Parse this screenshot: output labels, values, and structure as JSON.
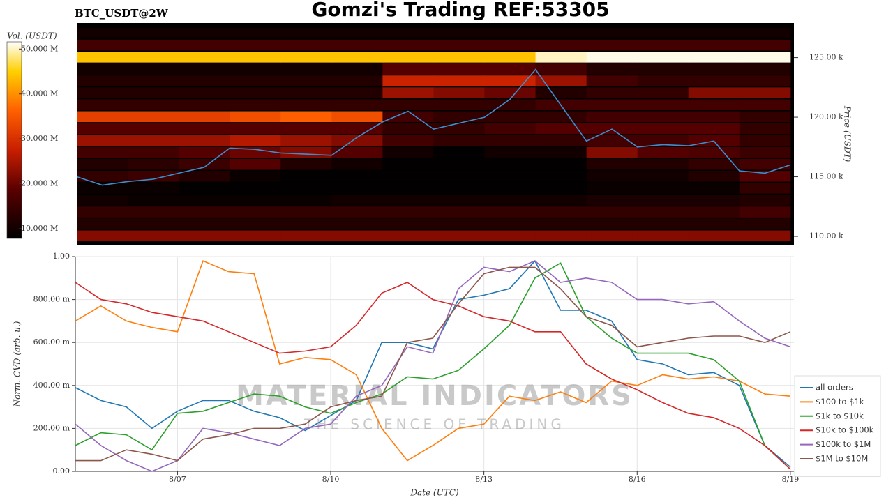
{
  "chart_data": [
    {
      "type": "heatmap",
      "title": "Gomzi's Trading REF:53305",
      "subtitle": "BTC_USDT@2W",
      "ylabel": "Price (USDT)",
      "colorbar_label": "Vol. (USDT)",
      "xlim": [
        5,
        19.07
      ],
      "ylim": [
        109300,
        127900
      ],
      "yticks": [
        {
          "value": 110000,
          "label": "110.00 k"
        },
        {
          "value": 115000,
          "label": "115.00 k"
        },
        {
          "value": 120000,
          "label": "120.00 k"
        },
        {
          "value": 125000,
          "label": "125.00 k"
        }
      ],
      "clim": [
        7800000,
        51600000
      ],
      "colorbar_ticks": [
        {
          "value": 10000000,
          "label": "10.000 M"
        },
        {
          "value": 20000000,
          "label": "20.000 M"
        },
        {
          "value": 30000000,
          "label": "30.000 M"
        },
        {
          "value": 40000000,
          "label": "40.000 M"
        },
        {
          "value": 50000000,
          "label": "50.000 M"
        }
      ],
      "colorscale": [
        [
          0,
          "#000000"
        ],
        [
          0.25,
          "#5a0000"
        ],
        [
          0.45,
          "#c81e00"
        ],
        [
          0.65,
          "#ff6000"
        ],
        [
          0.85,
          "#ffd000"
        ],
        [
          1,
          "#ffffff"
        ]
      ],
      "x_bins": [
        5,
        6,
        7,
        8,
        9,
        10,
        11,
        12,
        13,
        14,
        15,
        16,
        17,
        18,
        19
      ],
      "y_bins": [
        109500,
        110500,
        111500,
        112500,
        113500,
        114500,
        115500,
        116500,
        117500,
        118500,
        119500,
        120500,
        121500,
        122500,
        123500,
        124500,
        125500,
        126500,
        127500
      ],
      "z": [
        [
          22000000,
          22000000,
          22000000,
          22000000,
          22000000,
          22000000,
          22000000,
          22000000,
          22000000,
          22000000,
          22000000,
          22000000,
          22000000,
          22000000
        ],
        [
          12000000,
          12000000,
          12000000,
          12000000,
          12000000,
          12000000,
          12000000,
          12000000,
          12000000,
          12000000,
          12000000,
          12000000,
          12000000,
          12000000
        ],
        [
          14000000,
          14000000,
          14000000,
          14000000,
          14000000,
          14000000,
          14000000,
          14000000,
          14000000,
          14000000,
          14000000,
          14000000,
          14000000,
          16000000
        ],
        [
          10000000,
          9000000,
          9000000,
          9000000,
          9000000,
          10000000,
          10000000,
          10000000,
          10000000,
          10000000,
          11000000,
          11000000,
          11000000,
          12000000
        ],
        [
          9000000,
          9000000,
          8000000,
          8000000,
          8000000,
          8000000,
          8000000,
          8000000,
          8000000,
          8000000,
          9000000,
          9000000,
          9000000,
          14000000
        ],
        [
          14000000,
          15000000,
          12000000,
          9000000,
          8000000,
          8000000,
          8000000,
          8000000,
          8000000,
          8000000,
          10000000,
          10000000,
          12000000,
          18000000
        ],
        [
          12000000,
          13000000,
          15000000,
          18000000,
          12000000,
          10000000,
          8000000,
          8000000,
          8000000,
          8000000,
          12000000,
          12000000,
          14000000,
          16000000
        ],
        [
          16000000,
          16000000,
          18000000,
          20000000,
          22000000,
          18000000,
          10000000,
          8000000,
          10000000,
          10000000,
          22000000,
          18000000,
          17000000,
          15000000
        ],
        [
          24000000,
          24000000,
          24000000,
          26000000,
          24000000,
          22000000,
          16000000,
          14000000,
          14000000,
          14000000,
          16000000,
          16000000,
          18000000,
          14000000
        ],
        [
          18000000,
          18000000,
          18000000,
          18000000,
          18000000,
          18000000,
          14000000,
          14000000,
          16000000,
          18000000,
          18000000,
          18000000,
          18000000,
          14000000
        ],
        [
          32000000,
          32000000,
          32000000,
          34000000,
          36000000,
          34000000,
          16000000,
          14000000,
          14000000,
          14000000,
          16000000,
          16000000,
          16000000,
          14000000
        ],
        [
          14000000,
          14000000,
          14000000,
          14000000,
          14000000,
          14000000,
          14000000,
          14000000,
          14000000,
          16000000,
          16000000,
          16000000,
          16000000,
          16000000
        ],
        [
          12000000,
          12000000,
          12000000,
          12000000,
          12000000,
          12000000,
          24000000,
          22000000,
          20000000,
          12000000,
          14000000,
          14000000,
          22000000,
          22000000
        ],
        [
          12000000,
          12000000,
          12000000,
          12000000,
          12000000,
          12000000,
          28000000,
          28000000,
          28000000,
          24000000,
          16000000,
          14000000,
          14000000,
          14000000
        ],
        [
          10000000,
          10000000,
          10000000,
          10000000,
          10000000,
          10000000,
          18000000,
          18000000,
          18000000,
          16000000,
          12000000,
          12000000,
          12000000,
          12000000
        ],
        [
          44000000,
          44000000,
          44000000,
          44000000,
          44000000,
          44000000,
          44000000,
          44000000,
          44000000,
          50000000,
          51000000,
          51000000,
          51000000,
          51000000
        ],
        [
          16000000,
          16000000,
          16000000,
          16000000,
          16000000,
          16000000,
          16000000,
          16000000,
          16000000,
          16000000,
          16000000,
          16000000,
          16000000,
          16000000
        ],
        [
          10000000,
          10000000,
          10000000,
          10000000,
          10000000,
          10000000,
          10000000,
          10000000,
          10000000,
          10000000,
          10000000,
          10000000,
          10000000,
          10000000
        ]
      ],
      "x": [
        5,
        5.5,
        6,
        6.5,
        7,
        7.5,
        8,
        8.5,
        9,
        9.5,
        10,
        10.5,
        11,
        11.5,
        12,
        12.5,
        13,
        13.5,
        14,
        14.5,
        15,
        15.5,
        16,
        16.5,
        17,
        17.5,
        18,
        18.5,
        19
      ],
      "price": [
        115000,
        114300,
        114600,
        114800,
        115300,
        115800,
        117400,
        117300,
        117000,
        116900,
        116800,
        118300,
        119600,
        120500,
        119000,
        119500,
        120000,
        121500,
        124000,
        121000,
        118000,
        119000,
        117500,
        117700,
        117600,
        118000,
        115500,
        115300,
        116000
      ],
      "price_color": "#3a8fd0"
    },
    {
      "type": "line",
      "xlabel": "Date (UTC)",
      "ylabel": "Norm. CVD (arb. u.)",
      "grid": true,
      "legend": "right",
      "watermark": {
        "title": "MATERIAL INDICATORS",
        "tagline": "THE SCIENCE OF TRADING"
      },
      "xlim": [
        5,
        19.07
      ],
      "xticks": [
        {
          "value": 7,
          "label": "8/07"
        },
        {
          "value": 10,
          "label": "8/10"
        },
        {
          "value": 13,
          "label": "8/13"
        },
        {
          "value": 16,
          "label": "8/16"
        },
        {
          "value": 19,
          "label": "8/19"
        }
      ],
      "ylim": [
        0,
        1
      ],
      "yticks": [
        {
          "value": 0,
          "label": "0.00"
        },
        {
          "value": 0.2,
          "label": "200.00 m"
        },
        {
          "value": 0.4,
          "label": "400.00 m"
        },
        {
          "value": 0.6,
          "label": "600.00 m"
        },
        {
          "value": 0.8,
          "label": "800.00 m"
        },
        {
          "value": 1,
          "label": "1.00"
        }
      ],
      "x": [
        5,
        5.5,
        6,
        6.5,
        7,
        7.5,
        8,
        8.5,
        9,
        9.5,
        10,
        10.5,
        11,
        11.5,
        12,
        12.5,
        13,
        13.5,
        14,
        14.5,
        15,
        15.5,
        16,
        16.5,
        17,
        17.5,
        18,
        18.5,
        19
      ],
      "series": [
        {
          "name": "all orders",
          "color": "#1f77b4",
          "values": [
            0.39,
            0.33,
            0.3,
            0.2,
            0.28,
            0.33,
            0.33,
            0.28,
            0.25,
            0.19,
            0.26,
            0.33,
            0.6,
            0.6,
            0.57,
            0.8,
            0.82,
            0.85,
            0.98,
            0.75,
            0.75,
            0.7,
            0.52,
            0.5,
            0.45,
            0.46,
            0.4,
            0.12,
            0.02
          ]
        },
        {
          "name": "$100 to $1k",
          "color": "#ff7f0e",
          "values": [
            0.7,
            0.77,
            0.7,
            0.67,
            0.65,
            0.98,
            0.93,
            0.92,
            0.5,
            0.53,
            0.52,
            0.45,
            0.2,
            0.05,
            0.12,
            0.2,
            0.22,
            0.35,
            0.33,
            0.37,
            0.32,
            0.42,
            0.4,
            0.45,
            0.43,
            0.44,
            0.42,
            0.36,
            0.35
          ]
        },
        {
          "name": "$1k to $10k",
          "color": "#2ca02c",
          "values": [
            0.12,
            0.18,
            0.17,
            0.1,
            0.27,
            0.28,
            0.32,
            0.36,
            0.35,
            0.3,
            0.27,
            0.32,
            0.36,
            0.44,
            0.43,
            0.47,
            0.57,
            0.68,
            0.9,
            0.97,
            0.72,
            0.62,
            0.55,
            0.55,
            0.55,
            0.52,
            0.42,
            0.12,
            0.01
          ]
        },
        {
          "name": "$10k to $100k",
          "color": "#d62728",
          "values": [
            0.88,
            0.8,
            0.78,
            0.74,
            0.72,
            0.7,
            0.65,
            0.6,
            0.55,
            0.56,
            0.58,
            0.68,
            0.83,
            0.88,
            0.8,
            0.77,
            0.72,
            0.7,
            0.65,
            0.65,
            0.5,
            0.43,
            0.38,
            0.32,
            0.27,
            0.25,
            0.2,
            0.12,
            0.01
          ]
        },
        {
          "name": "$100k to $1M",
          "color": "#9467bd",
          "values": [
            0.22,
            0.12,
            0.05,
            0,
            0.05,
            0.2,
            0.18,
            0.15,
            0.12,
            0.2,
            0.22,
            0.35,
            0.4,
            0.58,
            0.55,
            0.85,
            0.95,
            0.93,
            0.98,
            0.88,
            0.9,
            0.88,
            0.8,
            0.8,
            0.78,
            0.79,
            0.7,
            0.62,
            0.58
          ]
        },
        {
          "name": "$1M to $10M",
          "color": "#8c564b",
          "values": [
            0.05,
            0.05,
            0.1,
            0.08,
            0.05,
            0.15,
            0.17,
            0.2,
            0.2,
            0.22,
            0.3,
            0.33,
            0.35,
            0.6,
            0.62,
            0.78,
            0.92,
            0.95,
            0.95,
            0.85,
            0.72,
            0.68,
            0.58,
            0.6,
            0.62,
            0.63,
            0.63,
            0.6,
            0.65
          ]
        }
      ]
    }
  ]
}
